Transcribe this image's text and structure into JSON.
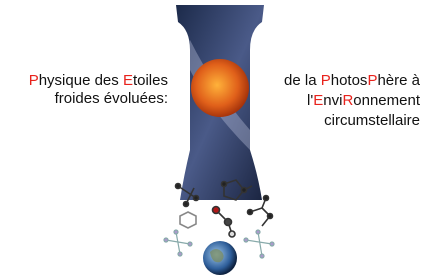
{
  "highlight_color": "#e8221c",
  "left_text": {
    "lines": [
      [
        {
          "text": "P",
          "highlight": true
        },
        {
          "text": "hysique des ",
          "highlight": false
        },
        {
          "text": "E",
          "highlight": true
        },
        {
          "text": "toiles",
          "highlight": false
        }
      ],
      [
        {
          "text": "froides évoluées:",
          "highlight": false
        }
      ]
    ]
  },
  "right_text": {
    "lines": [
      [
        {
          "text": "de la ",
          "highlight": false
        },
        {
          "text": "P",
          "highlight": true
        },
        {
          "text": "hotos",
          "highlight": false
        },
        {
          "text": "P",
          "highlight": true
        },
        {
          "text": "hère à",
          "highlight": false
        }
      ],
      [
        {
          "text": "l'",
          "highlight": false
        },
        {
          "text": "E",
          "highlight": true
        },
        {
          "text": "nvi",
          "highlight": false
        },
        {
          "text": "R",
          "highlight": true
        },
        {
          "text": "onnement",
          "highlight": false
        }
      ],
      [
        {
          "text": "circumstellaire",
          "highlight": false
        }
      ]
    ]
  }
}
